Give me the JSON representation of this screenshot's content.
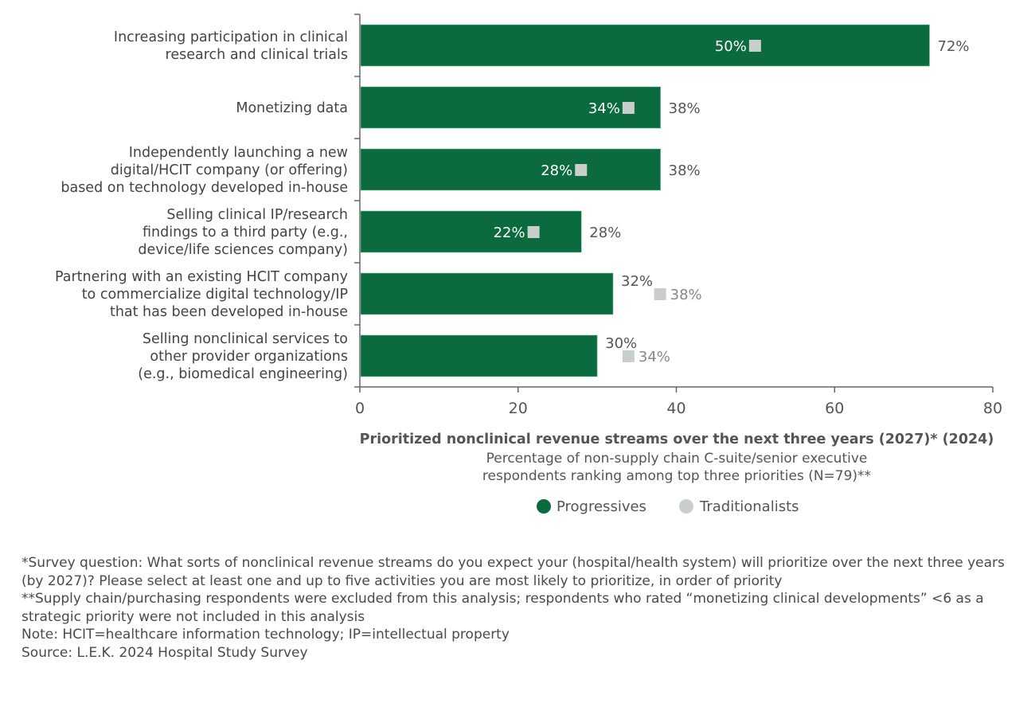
{
  "chart_data": {
    "type": "bar",
    "orientation": "horizontal",
    "title": "Prioritized nonclinical revenue streams over the next three years (2027)* (2024)",
    "subtitle": [
      "Percentage of non-supply chain C-suite/senior executive",
      "respondents ranking among top three priorities (N=79)**"
    ],
    "categories": [
      [
        "Increasing participation in clinical",
        "research and clinical trials"
      ],
      [
        "Monetizing data"
      ],
      [
        "Independently launching a new",
        "digital/HCIT company (or offering)",
        "based on technology developed in-house"
      ],
      [
        "Selling clinical IP/research",
        "findings to a third party (e.g.,",
        "device/life sciences company)"
      ],
      [
        "Partnering with an existing HCIT company",
        "to commercialize digital technology/IP",
        "that has been developed in-house"
      ],
      [
        "Selling nonclinical services to",
        "other provider organizations",
        "(e.g., biomedical engineering)"
      ]
    ],
    "series": [
      {
        "name": "Progressives",
        "values": [
          72,
          38,
          38,
          28,
          32,
          30
        ],
        "labels": [
          "72%",
          "38%",
          "38%",
          "28%",
          "32%",
          "30%"
        ],
        "color": "#0b6b3e",
        "mark": "bar"
      },
      {
        "name": "Traditionalists",
        "values": [
          50,
          34,
          28,
          22,
          38,
          34
        ],
        "labels": [
          "50%",
          "34%",
          "28%",
          "22%",
          "38%",
          "34%"
        ],
        "color": "#c8cfcb",
        "mark": "square"
      }
    ],
    "xlim": [
      0,
      80
    ],
    "xticks": [
      "0",
      "20",
      "40",
      "60",
      "80"
    ],
    "grid": false,
    "legend": "bottom"
  },
  "notes": [
    "*Survey question: What sorts of nonclinical revenue streams do you expect your (hospital/health system) will prioritize over the next three years (by 2027)? Please select at least one and up to five activities you are most likely to prioritize, in order of priority",
    "**Supply chain/purchasing respondents were excluded from this analysis; respondents who rated “monetizing clinical developments” <6 as a strategic priority were not included in this analysis",
    "Note: HCIT=healthcare information technology; IP=intellectual property",
    "Source: L.E.K. 2024 Hospital Study Survey"
  ]
}
